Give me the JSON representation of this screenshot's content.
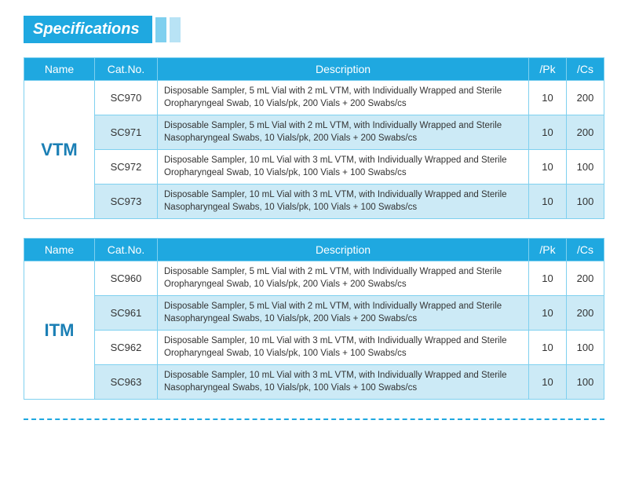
{
  "title": "Specifications",
  "columns": {
    "name": "Name",
    "cat": "Cat.No.",
    "desc": "Description",
    "pk": "/Pk",
    "cs": "/Cs"
  },
  "tables": [
    {
      "name": "VTM",
      "rows": [
        {
          "cat": "SC970",
          "desc": "Disposable Sampler, 5 mL Vial with 2 mL VTM, with Individually Wrapped and Sterile Oropharyngeal Swab, 10 Vials/pk, 200 Vials + 200 Swabs/cs",
          "pk": "10",
          "cs": "200"
        },
        {
          "cat": "SC971",
          "desc": "Disposable Sampler, 5 mL Vial with 2 mL VTM, with Individually Wrapped and Sterile Nasopharyngeal Swabs, 10 Vials/pk, 200 Vials + 200 Swabs/cs",
          "pk": "10",
          "cs": "200"
        },
        {
          "cat": "SC972",
          "desc": "Disposable Sampler, 10 mL Vial with 3 mL VTM, with Individually Wrapped and Sterile Oropharyngeal Swab, 10 Vials/pk, 100 Vials + 100 Swabs/cs",
          "pk": "10",
          "cs": "100"
        },
        {
          "cat": "SC973",
          "desc": "Disposable Sampler, 10 mL Vial with 3 mL VTM, with Individually Wrapped and Sterile Nasopharyngeal Swabs, 10 Vials/pk, 100 Vials + 100 Swabs/cs",
          "pk": "10",
          "cs": "100"
        }
      ]
    },
    {
      "name": "ITM",
      "rows": [
        {
          "cat": "SC960",
          "desc": "Disposable Sampler, 5 mL Vial with 2 mL VTM, with Individually Wrapped and Sterile Oropharyngeal Swab, 10 Vials/pk, 200 Vials + 200 Swabs/cs",
          "pk": "10",
          "cs": "200"
        },
        {
          "cat": "SC961",
          "desc": "Disposable Sampler, 5 mL Vial with 2 mL VTM, with Individually Wrapped and Sterile Nasopharyngeal Swabs, 10 Vials/pk, 200 Vials + 200 Swabs/cs",
          "pk": "10",
          "cs": "200"
        },
        {
          "cat": "SC962",
          "desc": "Disposable Sampler, 10 mL Vial with 3 mL VTM, with Individually Wrapped and Sterile Oropharyngeal Swab, 10 Vials/pk, 100 Vials + 100 Swabs/cs",
          "pk": "10",
          "cs": "100"
        },
        {
          "cat": "SC963",
          "desc": "Disposable Sampler, 10 mL Vial with 3 mL VTM, with Individually Wrapped and Sterile Nasopharyngeal Swabs, 10 Vials/pk, 100 Vials + 100 Swabs/cs",
          "pk": "10",
          "cs": "100"
        }
      ]
    }
  ],
  "styles": {
    "header_bg": "#1fa8e0",
    "border_color": "#7fd0ef",
    "row_alt_bg": "#cceaf6",
    "name_color": "#1b7fb5",
    "divider_color": "#1fa8e0"
  }
}
